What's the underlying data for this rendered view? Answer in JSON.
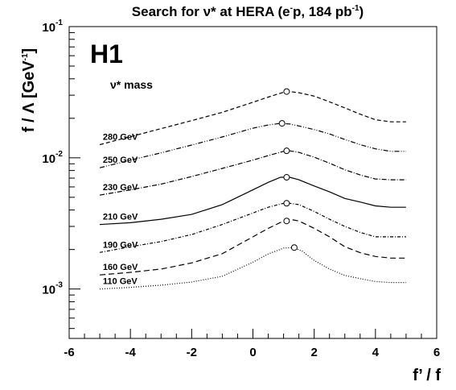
{
  "chart_data": {
    "type": "line",
    "title": "Search for ν* at HERA (e⁻p, 184 pb⁻¹)",
    "title_parts": {
      "main": "Search for ν* at HERA (e",
      "sup1": "-",
      "mid": "p, 184 pb",
      "sup2": "-1",
      "end": ")"
    },
    "logo": "H1",
    "legend_heading": "ν* mass",
    "xlabel": "f’ / f",
    "ylabel": {
      "main": "f / Λ [GeV",
      "sup": "-1",
      "end": "]"
    },
    "xlim": [
      -6,
      6
    ],
    "ylim": [
      0.00042,
      0.1
    ],
    "yscale": "log",
    "x_ticks": [
      {
        "value": -6,
        "label": "-6"
      },
      {
        "value": -4,
        "label": "-4"
      },
      {
        "value": -2,
        "label": "-2"
      },
      {
        "value": 0,
        "label": "0"
      },
      {
        "value": 2,
        "label": "2"
      },
      {
        "value": 4,
        "label": "4"
      },
      {
        "value": 6,
        "label": "6"
      }
    ],
    "y_ticks": [
      {
        "value": 0.001,
        "base": "10",
        "exp": "-3"
      },
      {
        "value": 0.01,
        "base": "10",
        "exp": "-2"
      },
      {
        "value": 0.1,
        "base": "10",
        "exp": "-1"
      }
    ],
    "series": [
      {
        "name": "280 GeV",
        "dash": "5,3",
        "x": [
          -5,
          -4,
          -3,
          -2,
          -1,
          0,
          0.5,
          1.0,
          1.2,
          1.5,
          2,
          2.5,
          3,
          3.5,
          4,
          4.5,
          5
        ],
        "y": [
          0.0126,
          0.0145,
          0.0167,
          0.0192,
          0.0222,
          0.0265,
          0.029,
          0.0316,
          0.032,
          0.0313,
          0.0295,
          0.0267,
          0.024,
          0.0215,
          0.0195,
          0.0188,
          0.0188
        ],
        "marker": {
          "x": 1.1,
          "y": 0.032
        }
      },
      {
        "name": "250 GeV",
        "dash": "6,2,1,2,1,2",
        "x": [
          -5,
          -4,
          -3,
          -2,
          -1,
          0,
          0.5,
          0.9,
          1.2,
          1.5,
          2,
          2.5,
          3,
          3.5,
          4,
          4.5,
          5
        ],
        "y": [
          0.0084,
          0.0096,
          0.0109,
          0.0125,
          0.0144,
          0.0168,
          0.0178,
          0.0183,
          0.0181,
          0.0175,
          0.0164,
          0.0152,
          0.0138,
          0.0126,
          0.0117,
          0.0112,
          0.0112
        ],
        "marker": {
          "x": 0.95,
          "y": 0.0183
        }
      },
      {
        "name": "230 GeV",
        "dash": "6,2,1,2",
        "x": [
          -5,
          -4,
          -3,
          -2,
          -1,
          0,
          0.5,
          1.0,
          1.2,
          1.5,
          2,
          2.5,
          3,
          3.5,
          4,
          4.5,
          5
        ],
        "y": [
          0.0052,
          0.0057,
          0.0063,
          0.0072,
          0.0083,
          0.0096,
          0.0104,
          0.0112,
          0.0113,
          0.011,
          0.0101,
          0.0091,
          0.0081,
          0.0074,
          0.0069,
          0.0068,
          0.0068
        ],
        "marker": {
          "x": 1.1,
          "y": 0.0113
        }
      },
      {
        "name": "210 GeV",
        "dash": "",
        "x": [
          -5,
          -4,
          -3,
          -2,
          -1,
          0,
          0.5,
          0.9,
          1.2,
          1.5,
          2,
          2.5,
          3,
          3.5,
          4,
          4.5,
          5
        ],
        "y": [
          0.0031,
          0.0032,
          0.0034,
          0.0037,
          0.0044,
          0.0057,
          0.0065,
          0.0071,
          0.0071,
          0.0068,
          0.0061,
          0.0055,
          0.0049,
          0.0046,
          0.0043,
          0.0042,
          0.0042
        ],
        "marker": {
          "x": 1.1,
          "y": 0.0071
        }
      },
      {
        "name": "190 GeV",
        "dash": "4,2,1,2",
        "x": [
          -5,
          -4,
          -3,
          -2,
          -1,
          0,
          0.5,
          1.0,
          1.2,
          1.5,
          2,
          2.5,
          3,
          3.5,
          4,
          4.5,
          5
        ],
        "y": [
          0.0019,
          0.0021,
          0.0023,
          0.0026,
          0.0031,
          0.0038,
          0.0042,
          0.0045,
          0.0045,
          0.0044,
          0.0039,
          0.0034,
          0.003,
          0.0027,
          0.0025,
          0.0025,
          0.0025
        ],
        "marker": {
          "x": 1.1,
          "y": 0.0045
        }
      },
      {
        "name": "160 GeV",
        "dash": "7,4",
        "x": [
          -5,
          -4,
          -3,
          -2,
          -1,
          0,
          0.5,
          1.0,
          1.2,
          1.5,
          2,
          2.5,
          3,
          3.5,
          4,
          4.5,
          5
        ],
        "y": [
          0.00128,
          0.00134,
          0.00142,
          0.00158,
          0.00186,
          0.0025,
          0.0029,
          0.0033,
          0.0034,
          0.0033,
          0.0029,
          0.0025,
          0.0021,
          0.00189,
          0.00177,
          0.00172,
          0.00172
        ],
        "marker": {
          "x": 1.1,
          "y": 0.0033
        }
      },
      {
        "name": "110 GeV",
        "dash": "1,2",
        "x": [
          -5,
          -4,
          -3,
          -2,
          -1,
          0,
          0.5,
          1.0,
          1.3,
          1.6,
          2,
          2.5,
          3,
          3.5,
          4,
          4.5,
          5
        ],
        "y": [
          0.001,
          0.00103,
          0.00107,
          0.00113,
          0.00125,
          0.0016,
          0.00185,
          0.00205,
          0.00207,
          0.00195,
          0.00165,
          0.00142,
          0.00127,
          0.0012,
          0.00114,
          0.00112,
          0.00112
        ],
        "marker": {
          "x": 1.35,
          "y": 0.00207
        }
      }
    ]
  }
}
